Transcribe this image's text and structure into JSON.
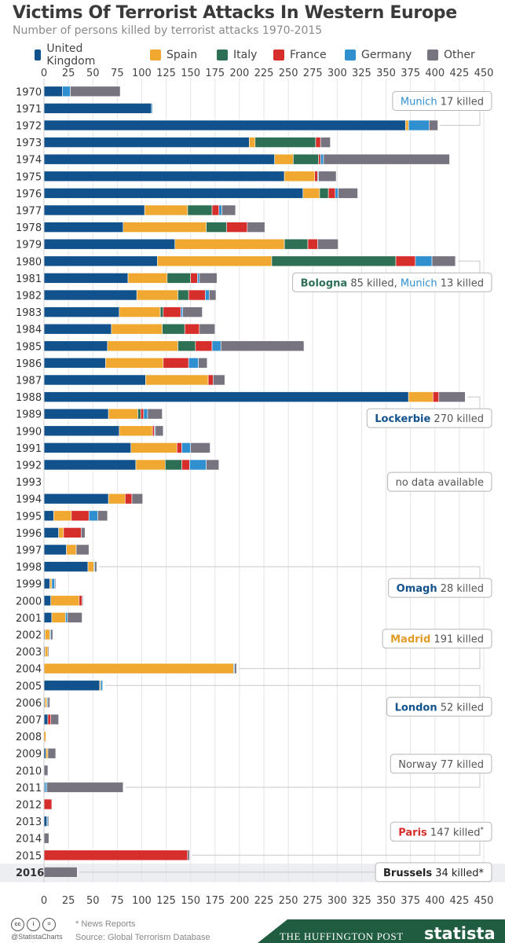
{
  "title": "Victims Of Terrorist Attacks In Western Europe",
  "subtitle": "Number of persons killed by terrorist attacks 1970-2015",
  "colors": {
    "united_kingdom": "#11528c",
    "spain": "#f1a830",
    "italy": "#2d7056",
    "france": "#d62e2b",
    "germany": "#2f8fcf",
    "other": "#777480",
    "annotation_border": "#b5b5b5",
    "band": "#edeef1",
    "uk_text": "#11528c",
    "spain_text": "#e29c25",
    "france_text": "#d62e2b",
    "germany_text": "#2f8fcf"
  },
  "chart_data": {
    "type": "bar",
    "orientation": "horizontal",
    "stacked": true,
    "title": "Victims Of Terrorist Attacks In Western Europe",
    "subtitle": "Number of persons killed by terrorist attacks 1970-2015",
    "xlim": [
      0,
      450
    ],
    "x_ticks": [
      "0",
      "25",
      "50",
      "75",
      "100",
      "125",
      "150",
      "175",
      "200",
      "225",
      "250",
      "275",
      "300",
      "325",
      "350",
      "375",
      "400",
      "425",
      "450"
    ],
    "legend_position": "top",
    "grid": true,
    "categories": [
      "1970",
      "1971",
      "1972",
      "1973",
      "1974",
      "1975",
      "1976",
      "1977",
      "1978",
      "1979",
      "1980",
      "1981",
      "1982",
      "1983",
      "1984",
      "1985",
      "1986",
      "1987",
      "1988",
      "1989",
      "1990",
      "1991",
      "1992",
      "1993",
      "1994",
      "1995",
      "1996",
      "1997",
      "1998",
      "1999",
      "2000",
      "2001",
      "2002",
      "2003",
      "2004",
      "2005",
      "2006",
      "2007",
      "2008",
      "2009",
      "2010",
      "2011",
      "2012",
      "2013",
      "2014",
      "2015",
      "2016"
    ],
    "series": [
      {
        "name": "United Kingdom",
        "values": [
          19,
          110,
          370,
          210,
          236,
          246,
          265,
          103,
          81,
          134,
          116,
          86,
          95,
          77,
          69,
          65,
          63,
          104,
          373,
          66,
          77,
          89,
          94,
          0,
          66,
          10,
          15,
          23,
          45,
          6,
          7,
          8,
          1,
          1,
          0,
          57,
          1,
          4,
          0,
          2,
          0,
          1,
          0,
          3,
          0,
          0,
          0
        ]
      },
      {
        "name": "Spain",
        "values": [
          0,
          0,
          3,
          6,
          19,
          31,
          17,
          44,
          85,
          112,
          117,
          40,
          42,
          42,
          52,
          72,
          59,
          64,
          25,
          30,
          34,
          47,
          30,
          0,
          17,
          18,
          5,
          10,
          6,
          2,
          29,
          14,
          5,
          3,
          194,
          1,
          2,
          0,
          2,
          2,
          0,
          0,
          0,
          0,
          0,
          0,
          0
        ]
      },
      {
        "name": "Italy",
        "values": [
          0,
          0,
          0,
          62,
          26,
          0,
          9,
          25,
          21,
          24,
          127,
          24,
          11,
          3,
          23,
          18,
          0,
          0,
          0,
          3,
          0,
          0,
          17,
          0,
          0,
          0,
          0,
          0,
          0,
          0,
          0,
          0,
          0,
          0,
          0,
          0,
          0,
          0,
          0,
          0,
          0,
          0,
          0,
          0,
          0,
          0,
          0
        ]
      },
      {
        "name": "France",
        "values": [
          0,
          0,
          0,
          5,
          2,
          3,
          7,
          7,
          21,
          10,
          20,
          7,
          17,
          18,
          15,
          17,
          26,
          5,
          6,
          3,
          2,
          5,
          8,
          0,
          7,
          18,
          18,
          0,
          0,
          0,
          3,
          0,
          0,
          0,
          0,
          0,
          0,
          3,
          0,
          0,
          0,
          0,
          8,
          0,
          0,
          147,
          0
        ]
      },
      {
        "name": "Germany",
        "values": [
          8,
          1,
          21,
          0,
          3,
          1,
          3,
          3,
          0,
          0,
          17,
          2,
          4,
          2,
          0,
          9,
          10,
          0,
          0,
          4,
          1,
          9,
          17,
          0,
          0,
          9,
          0,
          0,
          1,
          3,
          0,
          2,
          1,
          0,
          1,
          2,
          1,
          0,
          0,
          0,
          0,
          2,
          0,
          1,
          0,
          0,
          0
        ]
      },
      {
        "name": "Other",
        "values": [
          51,
          0,
          9,
          10,
          129,
          18,
          20,
          14,
          18,
          21,
          24,
          18,
          7,
          20,
          16,
          85,
          9,
          12,
          27,
          15,
          8,
          20,
          13,
          0,
          11,
          10,
          4,
          13,
          2,
          1,
          1,
          15,
          2,
          1,
          2,
          0,
          2,
          8,
          0,
          8,
          4,
          78,
          0,
          1,
          5,
          2,
          34
        ]
      }
    ],
    "annotations": [
      {
        "year": "1972",
        "parts": [
          {
            "text": "Munich",
            "color": "germany_text",
            "bold": false
          },
          {
            "text": " 17 killed",
            "color": "default",
            "bold": false
          }
        ]
      },
      {
        "year": "1980",
        "parts": [
          {
            "text": "Bologna",
            "color": "italy",
            "bold": true
          },
          {
            "text": " 85 killed, ",
            "color": "default",
            "bold": false
          },
          {
            "text": "Munich",
            "color": "germany_text",
            "bold": false
          },
          {
            "text": " 13 killed",
            "color": "default",
            "bold": false
          }
        ]
      },
      {
        "year": "1988",
        "parts": [
          {
            "text": "Lockerbie",
            "color": "uk_text",
            "bold": true
          },
          {
            "text": " 270 killed",
            "color": "default",
            "bold": false
          }
        ]
      },
      {
        "year": "1993",
        "parts": [
          {
            "text": "no data available",
            "color": "default",
            "bold": false
          }
        ]
      },
      {
        "year": "1998",
        "parts": [
          {
            "text": "Omagh",
            "color": "uk_text",
            "bold": true
          },
          {
            "text": " 28 killed",
            "color": "default",
            "bold": false
          }
        ]
      },
      {
        "year": "2004",
        "parts": [
          {
            "text": "Madrid",
            "color": "spain_text",
            "bold": true
          },
          {
            "text": " 191 killed",
            "color": "default",
            "bold": false
          }
        ]
      },
      {
        "year": "2005",
        "parts": [
          {
            "text": "London",
            "color": "uk_text",
            "bold": true
          },
          {
            "text": " 52 killed",
            "color": "default",
            "bold": false
          }
        ]
      },
      {
        "year": "2011",
        "parts": [
          {
            "text": "Norway 77 killed",
            "color": "default",
            "bold": false
          }
        ]
      },
      {
        "year": "2015",
        "parts": [
          {
            "text": "Paris",
            "color": "france_text",
            "bold": true
          },
          {
            "text": " 147 killed",
            "color": "default",
            "bold": false
          },
          {
            "text": "*",
            "color": "default",
            "bold": false,
            "sup": true
          }
        ]
      },
      {
        "year": "2016",
        "parts": [
          {
            "text": "Brussels",
            "color": "dark",
            "bold": true
          },
          {
            "text": " 34 killed*",
            "color": "dark",
            "bold": false
          }
        ]
      }
    ]
  },
  "footer": {
    "cc_icons": [
      "cc",
      "i",
      "="
    ],
    "handle": "@StatistaCharts",
    "note": "* News Reports",
    "source": "Source: Global Terrorism Database",
    "publisher": "THE HUFFINGTON POST",
    "brand": "statista"
  }
}
